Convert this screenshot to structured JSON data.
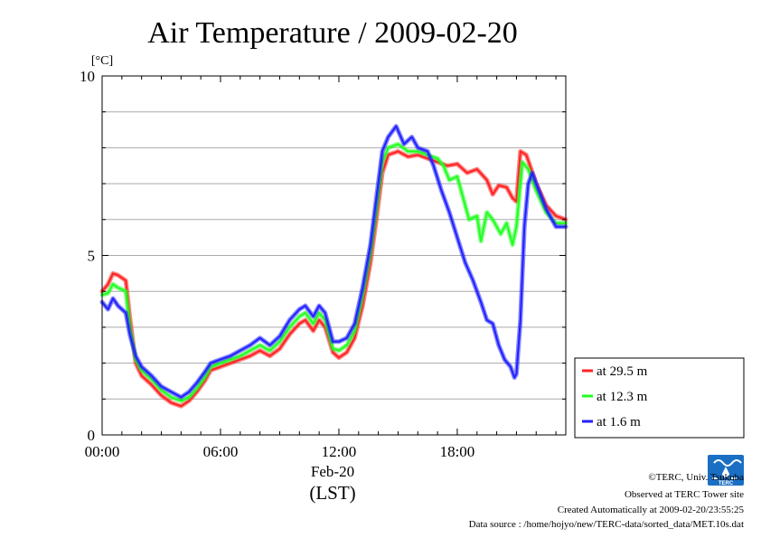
{
  "chart_data": {
    "type": "line",
    "title": "Air Temperature / 2009-02-20",
    "ylabel": "[°C]",
    "xlabel": "(LST)",
    "date_label": "Feb-20",
    "ylim": [
      0,
      10
    ],
    "y_ticks": [
      "0",
      "5",
      "10"
    ],
    "x_range_hours": [
      0,
      23.5
    ],
    "x_ticks": [
      {
        "hour": 0,
        "label": "00:00"
      },
      {
        "hour": 6,
        "label": "06:00"
      },
      {
        "hour": 12,
        "label": "12:00"
      },
      {
        "hour": 18,
        "label": "18:00"
      }
    ],
    "grid": "horizontal",
    "legend_position": "bottom-right, outside plot",
    "series": [
      {
        "name": "at 29.5 m",
        "color": "#ff2020",
        "points": [
          [
            0,
            4.0
          ],
          [
            0.3,
            4.2
          ],
          [
            0.55,
            4.5
          ],
          [
            0.8,
            4.45
          ],
          [
            1.2,
            4.3
          ],
          [
            1.4,
            3.3
          ],
          [
            1.7,
            2.0
          ],
          [
            2.0,
            1.65
          ],
          [
            2.5,
            1.4
          ],
          [
            3.0,
            1.1
          ],
          [
            3.5,
            0.9
          ],
          [
            4.0,
            0.8
          ],
          [
            4.4,
            0.95
          ],
          [
            4.8,
            1.2
          ],
          [
            5.2,
            1.5
          ],
          [
            5.5,
            1.8
          ],
          [
            6.0,
            1.9
          ],
          [
            6.5,
            2.0
          ],
          [
            7.0,
            2.1
          ],
          [
            7.5,
            2.2
          ],
          [
            8.0,
            2.35
          ],
          [
            8.5,
            2.2
          ],
          [
            9.0,
            2.4
          ],
          [
            9.5,
            2.8
          ],
          [
            10.0,
            3.1
          ],
          [
            10.3,
            3.2
          ],
          [
            10.7,
            2.9
          ],
          [
            11.0,
            3.2
          ],
          [
            11.3,
            3.0
          ],
          [
            11.7,
            2.3
          ],
          [
            12.0,
            2.15
          ],
          [
            12.4,
            2.3
          ],
          [
            12.8,
            2.7
          ],
          [
            13.2,
            3.6
          ],
          [
            13.6,
            4.8
          ],
          [
            13.9,
            6.0
          ],
          [
            14.2,
            7.3
          ],
          [
            14.5,
            7.8
          ],
          [
            15.0,
            7.9
          ],
          [
            15.5,
            7.75
          ],
          [
            16.0,
            7.8
          ],
          [
            16.5,
            7.7
          ],
          [
            17.0,
            7.6
          ],
          [
            17.5,
            7.5
          ],
          [
            18.0,
            7.55
          ],
          [
            18.5,
            7.3
          ],
          [
            19.0,
            7.4
          ],
          [
            19.5,
            7.1
          ],
          [
            19.8,
            6.7
          ],
          [
            20.1,
            6.95
          ],
          [
            20.5,
            6.9
          ],
          [
            20.8,
            6.6
          ],
          [
            21.0,
            6.5
          ],
          [
            21.2,
            7.9
          ],
          [
            21.5,
            7.8
          ],
          [
            22.0,
            7.0
          ],
          [
            22.5,
            6.4
          ],
          [
            23.0,
            6.1
          ],
          [
            23.5,
            6.0
          ]
        ]
      },
      {
        "name": "at 12.3 m",
        "color": "#20ff20",
        "points": [
          [
            0,
            3.9
          ],
          [
            0.3,
            3.95
          ],
          [
            0.55,
            4.2
          ],
          [
            0.8,
            4.1
          ],
          [
            1.2,
            4.0
          ],
          [
            1.4,
            3.0
          ],
          [
            1.7,
            2.1
          ],
          [
            2.0,
            1.8
          ],
          [
            2.5,
            1.55
          ],
          [
            3.0,
            1.25
          ],
          [
            3.5,
            1.05
          ],
          [
            4.0,
            0.95
          ],
          [
            4.4,
            1.05
          ],
          [
            4.8,
            1.3
          ],
          [
            5.2,
            1.6
          ],
          [
            5.5,
            1.9
          ],
          [
            6.0,
            2.0
          ],
          [
            6.5,
            2.1
          ],
          [
            7.0,
            2.2
          ],
          [
            7.5,
            2.35
          ],
          [
            8.0,
            2.5
          ],
          [
            8.5,
            2.35
          ],
          [
            9.0,
            2.6
          ],
          [
            9.5,
            3.0
          ],
          [
            10.0,
            3.3
          ],
          [
            10.3,
            3.4
          ],
          [
            10.7,
            3.1
          ],
          [
            11.0,
            3.4
          ],
          [
            11.3,
            3.2
          ],
          [
            11.7,
            2.4
          ],
          [
            12.0,
            2.35
          ],
          [
            12.4,
            2.5
          ],
          [
            12.8,
            2.9
          ],
          [
            13.2,
            3.9
          ],
          [
            13.6,
            5.1
          ],
          [
            13.9,
            6.3
          ],
          [
            14.2,
            7.6
          ],
          [
            14.5,
            8.0
          ],
          [
            15.0,
            8.1
          ],
          [
            15.5,
            7.9
          ],
          [
            16.0,
            7.9
          ],
          [
            16.5,
            7.8
          ],
          [
            17.0,
            7.7
          ],
          [
            17.3,
            7.5
          ],
          [
            17.6,
            7.1
          ],
          [
            18.0,
            7.2
          ],
          [
            18.3,
            6.6
          ],
          [
            18.6,
            6.0
          ],
          [
            19.0,
            6.1
          ],
          [
            19.2,
            5.4
          ],
          [
            19.5,
            6.2
          ],
          [
            19.8,
            6.0
          ],
          [
            20.2,
            5.6
          ],
          [
            20.5,
            5.9
          ],
          [
            20.8,
            5.3
          ],
          [
            21.0,
            5.8
          ],
          [
            21.3,
            7.6
          ],
          [
            21.6,
            7.4
          ],
          [
            22.0,
            6.8
          ],
          [
            22.5,
            6.2
          ],
          [
            23.0,
            5.9
          ],
          [
            23.5,
            5.9
          ]
        ]
      },
      {
        "name": "at 1.6 m",
        "color": "#2020ff",
        "points": [
          [
            0,
            3.7
          ],
          [
            0.3,
            3.5
          ],
          [
            0.55,
            3.8
          ],
          [
            0.8,
            3.6
          ],
          [
            1.2,
            3.4
          ],
          [
            1.4,
            2.8
          ],
          [
            1.7,
            2.2
          ],
          [
            2.0,
            1.9
          ],
          [
            2.5,
            1.65
          ],
          [
            3.0,
            1.35
          ],
          [
            3.5,
            1.2
          ],
          [
            4.0,
            1.05
          ],
          [
            4.4,
            1.2
          ],
          [
            4.8,
            1.45
          ],
          [
            5.2,
            1.75
          ],
          [
            5.5,
            2.0
          ],
          [
            6.0,
            2.1
          ],
          [
            6.5,
            2.2
          ],
          [
            7.0,
            2.35
          ],
          [
            7.5,
            2.5
          ],
          [
            8.0,
            2.7
          ],
          [
            8.5,
            2.5
          ],
          [
            9.0,
            2.75
          ],
          [
            9.5,
            3.2
          ],
          [
            10.0,
            3.5
          ],
          [
            10.3,
            3.6
          ],
          [
            10.7,
            3.3
          ],
          [
            11.0,
            3.6
          ],
          [
            11.3,
            3.4
          ],
          [
            11.7,
            2.6
          ],
          [
            12.0,
            2.6
          ],
          [
            12.4,
            2.7
          ],
          [
            12.8,
            3.1
          ],
          [
            13.2,
            4.1
          ],
          [
            13.6,
            5.3
          ],
          [
            13.9,
            6.6
          ],
          [
            14.2,
            7.9
          ],
          [
            14.5,
            8.3
          ],
          [
            14.9,
            8.6
          ],
          [
            15.3,
            8.1
          ],
          [
            15.7,
            8.3
          ],
          [
            16.0,
            8.0
          ],
          [
            16.5,
            7.9
          ],
          [
            16.8,
            7.5
          ],
          [
            17.2,
            6.8
          ],
          [
            17.6,
            6.2
          ],
          [
            18.0,
            5.5
          ],
          [
            18.4,
            4.8
          ],
          [
            18.8,
            4.3
          ],
          [
            19.2,
            3.7
          ],
          [
            19.5,
            3.2
          ],
          [
            19.8,
            3.1
          ],
          [
            20.1,
            2.5
          ],
          [
            20.4,
            2.1
          ],
          [
            20.7,
            1.9
          ],
          [
            20.9,
            1.6
          ],
          [
            21.0,
            1.7
          ],
          [
            21.2,
            3.2
          ],
          [
            21.4,
            5.8
          ],
          [
            21.6,
            7.0
          ],
          [
            21.8,
            7.3
          ],
          [
            22.0,
            7.0
          ],
          [
            22.5,
            6.3
          ],
          [
            23.0,
            5.8
          ],
          [
            23.5,
            5.8
          ]
        ]
      }
    ]
  },
  "footer": {
    "copyright": "©TERC, Univ. Tsukuba",
    "site": "Observed at TERC Tower site",
    "created": "Created Automatically at 2009-02-20/23:55:25",
    "source": "Data source : /home/hojyo/new/TERC-data/sorted_data/MET.10s.dat",
    "logo_text": "TERC"
  }
}
